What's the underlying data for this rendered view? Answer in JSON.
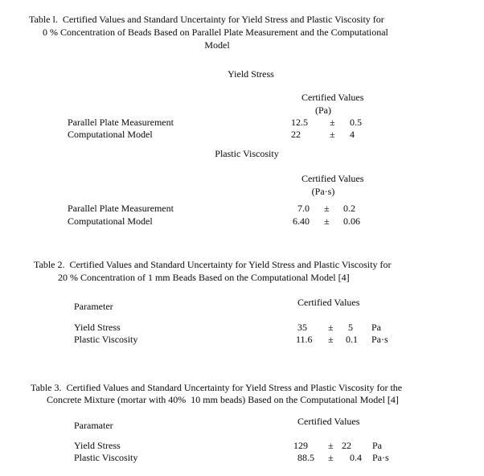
{
  "colors": {
    "text": "#1f1f1f",
    "background": "#ffffff"
  },
  "document": {
    "table1": {
      "title_lines": [
        "Table l.  Certified Values and Standard Uncertainty for Yield Stress and Plastic Viscosity for",
        "0 % Concentration of Beads Based on Parallel Plate Measurement and the Computational",
        "Model"
      ],
      "sections": [
        {
          "heading": "Yield Stress",
          "column_header": "Certified Values",
          "unit_line": "(Pa)",
          "rows": [
            {
              "label": "Parallel Plate Measurement",
              "value": "12.5",
              "pm": "±",
              "uncertainty": "0.5"
            },
            {
              "label": "Computational Model",
              "value": "22",
              "pm": "±",
              "uncertainty": "4"
            }
          ]
        },
        {
          "heading": "Plastic Viscosity",
          "column_header": "Certified Values",
          "unit_line": "(Pa·s)",
          "rows": [
            {
              "label": "Parallel Plate Measurement",
              "value": "7.0",
              "pm": "±",
              "uncertainty": "0.2"
            },
            {
              "label": "Computational Model",
              "value": "6.40",
              "pm": "±",
              "uncertainty": "0.06"
            }
          ]
        }
      ]
    },
    "table2": {
      "title_lines": [
        "Table 2.  Certified Values and Standard Uncertainty for Yield Stress and Plastic Viscosity for",
        "20 % Concentration of 1 mm Beads Based on the Computational Model [4]"
      ],
      "param_header": "Parameter",
      "column_header": "Certified Values",
      "rows": [
        {
          "label": "Yield Stress",
          "value": "35",
          "pm": "±",
          "uncertainty": "5",
          "unit": "Pa"
        },
        {
          "label": "Plastic Viscosity",
          "value": "11.6",
          "pm": "±",
          "uncertainty": "0.1",
          "unit": "Pa·s"
        }
      ]
    },
    "table3": {
      "title_lines": [
        "Table 3.  Certified Values and Standard Uncertainty for Yield Stress and Plastic Viscosity for the",
        "Concrete Mixture (mortar with 40%  10 mm beads) Based on the Computational Model [4]"
      ],
      "param_header": "Paramater",
      "column_header": "Certified Values",
      "rows": [
        {
          "label": "Yield Stress",
          "value": "129",
          "pm": "±",
          "uncertainty": "22",
          "unit": "Pa"
        },
        {
          "label": "Plastic Viscosity",
          "value": "88.5",
          "pm": "±",
          "uncertainty": "0.4",
          "unit": "Pa·s"
        }
      ]
    }
  }
}
